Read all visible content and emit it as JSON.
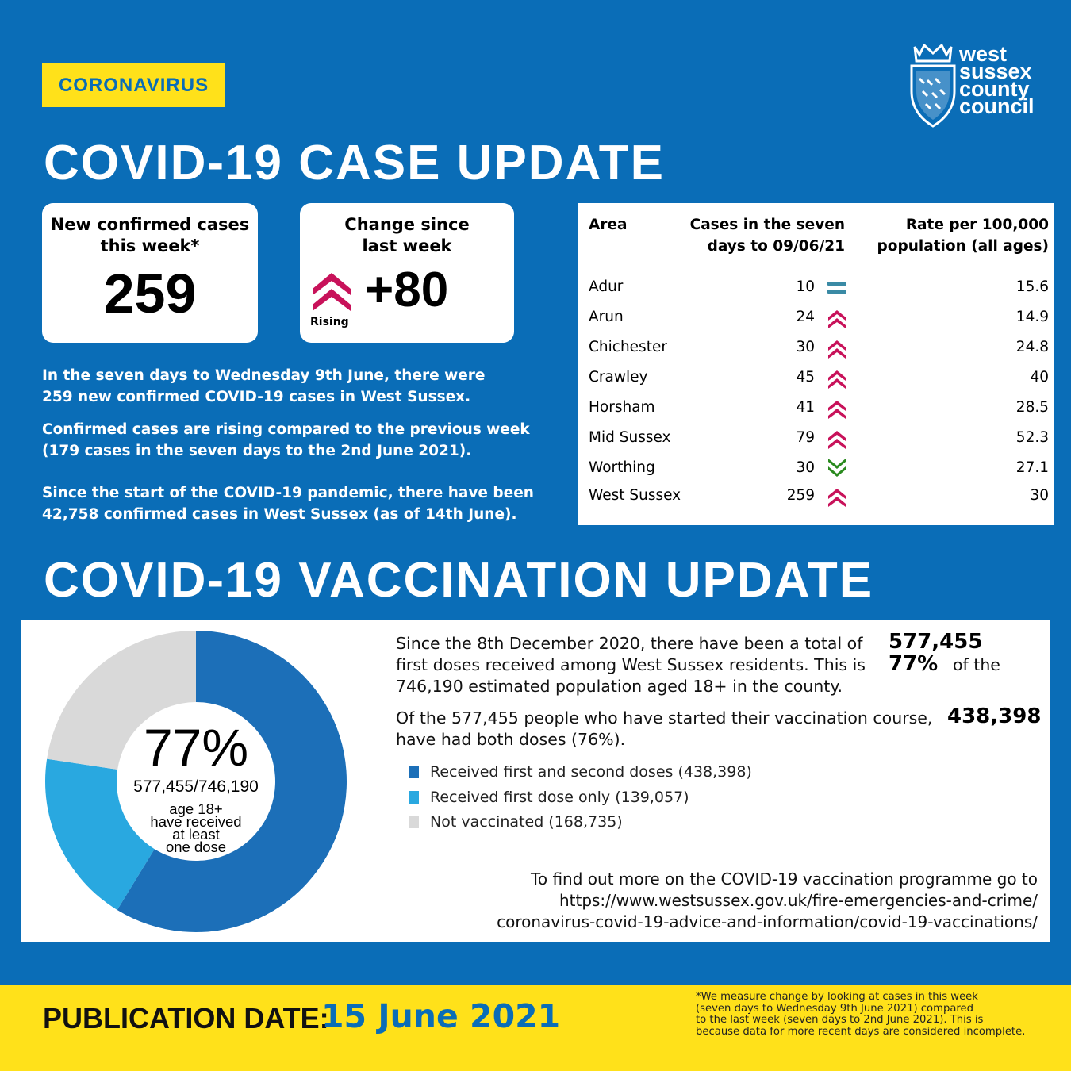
{
  "tag": "CORONAVIRUS",
  "logo": {
    "line1": "west",
    "line2": "sussex",
    "line3": "county",
    "line4": "council"
  },
  "case_title": "COVID-19 CASE UPDATE",
  "card_new": {
    "title1": "New confirmed cases",
    "title2": "this week*",
    "value": "259"
  },
  "card_change": {
    "title1": "Change since",
    "title2": "last week",
    "value": "+80",
    "status": "Rising"
  },
  "paragraphs": {
    "p1a": "In the seven days to Wednesday 9th June,  there were",
    "p1b": "259 new confirmed COVID-19 cases in West Sussex.",
    "p2a": "Confirmed cases are rising compared to the previous week",
    "p2b": "(179 cases in the seven days to the 2nd June 2021).",
    "p3a": "Since the start of the COVID-19 pandemic, there have been",
    "p3b": "42,758 confirmed cases in West Sussex (as of 14th June)."
  },
  "table": {
    "h_area": "Area",
    "h_cases1": "Cases in the seven",
    "h_cases2": "days to 09/06/21",
    "h_rate1": "Rate per 100,000",
    "h_rate2": "population (all ages)",
    "rows": [
      {
        "area": "Adur",
        "cases": "10",
        "trend": "same",
        "rate": "15.6"
      },
      {
        "area": "Arun",
        "cases": "24",
        "trend": "up",
        "rate": "14.9"
      },
      {
        "area": "Chichester",
        "cases": "30",
        "trend": "up",
        "rate": "24.8"
      },
      {
        "area": "Crawley",
        "cases": "45",
        "trend": "up",
        "rate": "40"
      },
      {
        "area": "Horsham",
        "cases": "41",
        "trend": "up",
        "rate": "28.5"
      },
      {
        "area": "Mid Sussex",
        "cases": "79",
        "trend": "up",
        "rate": "52.3"
      },
      {
        "area": "Worthing",
        "cases": "30",
        "trend": "down",
        "rate": "27.1"
      }
    ],
    "total": {
      "area": "West Sussex",
      "cases": "259",
      "trend": "up",
      "rate": "30"
    }
  },
  "vacc_title": "COVID-19 VACCINATION UPDATE",
  "donut_center": {
    "pct": "77%",
    "ratio": "577,455/746,190",
    "l1": "age 18+",
    "l2": "have received",
    "l3": "at least",
    "l4": "one dose"
  },
  "vacc_text": {
    "t1a": "Since the 8th December 2020, there have been a total of",
    "t1b": "first doses received among West Sussex residents. This is",
    "t1c": "of the",
    "t1d": "746,190 estimated population aged 18+ in the county.",
    "b1": "577,455",
    "b2": "77%",
    "t2a": "Of the 577,455 people who have started their vaccination course,",
    "t2b": "have had both doses (76%).",
    "b3": "438,398"
  },
  "link": {
    "l1": "To find out more on the COVID-19 vaccination programme go to",
    "l2": "https://www.westsussex.gov.uk/fire-emergencies-and-crime/",
    "l3": "coronavirus-covid-19-advice-and-information/covid-19-vaccinations/"
  },
  "footer": {
    "label": "PUBLICATION DATE:",
    "date": "15 June 2021",
    "n1": "*We measure change by looking at cases in this week",
    "n2": "(seven days to Wednesday 9th June 2021) compared",
    "n3": "to the last week (seven days to 2nd June 2021). This is",
    "n4": "because data for more recent days are considered incomplete."
  },
  "colors": {
    "up": "#c8125a",
    "down": "#2a8a1e",
    "same": "#3a8aa5",
    "dark_blue": "#1c6fb8",
    "light_blue": "#29a8e0",
    "grey": "#d9d9d9"
  },
  "chart_data": {
    "type": "pie",
    "variant": "donut",
    "categories": [
      "Received first and second doses (438,398)",
      "Received first dose only (139,057)",
      "Not vaccinated (168,735)"
    ],
    "values": [
      438398,
      139057,
      168735
    ],
    "colors": [
      "#1c6fb8",
      "#29a8e0",
      "#d9d9d9"
    ],
    "legend": "right"
  }
}
